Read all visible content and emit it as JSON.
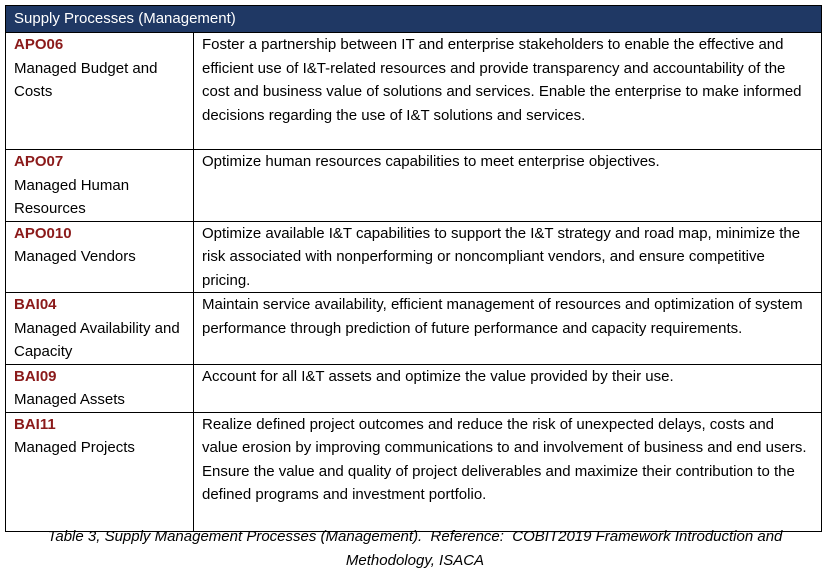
{
  "header": {
    "title": "Supply Processes (Management)"
  },
  "table": {
    "rows": [
      {
        "code": "APO06",
        "name": "Managed Budget and Costs",
        "description": "Foster a partnership between IT and enterprise stakeholders to enable the effective and efficient use of I&T-related resources and provide transparency and accountability of the cost and business value of solutions and services. Enable the enterprise to make informed decisions regarding the use of I&T solutions and services."
      },
      {
        "code": "APO07",
        "name": "Managed Human Resources",
        "description": "Optimize human resources capabilities to meet enterprise objectives."
      },
      {
        "code": "APO010",
        "name": "Managed Vendors",
        "description": "Optimize available I&T capabilities to support the I&T strategy and road map, minimize the risk associated with nonperforming or noncompliant vendors, and ensure competitive pricing."
      },
      {
        "code": "BAI04",
        "name": "Managed Availability and Capacity",
        "description": "Maintain service availability, efficient management of resources and optimization of system performance through prediction of future performance and capacity requirements."
      },
      {
        "code": "BAI09",
        "name": "Managed Assets",
        "description": "Account for all I&T assets and optimize the value provided by their use."
      },
      {
        "code": "BAI11",
        "name": "Managed Projects",
        "description": "Realize defined project outcomes and reduce the risk of unexpected delays, costs and value erosion by improving communications to and involvement of business and end users. Ensure the value and quality of project deliverables and maximize their contribution to the defined programs and investment portfolio."
      }
    ]
  },
  "caption": "Table 3, Supply Management Processes (Management).  Reference:  COBIT2019 Framework Introduction and Methodology, ISACA"
}
